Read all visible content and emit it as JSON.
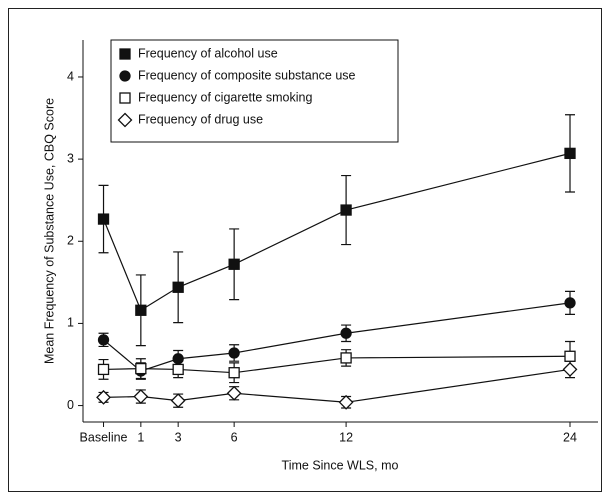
{
  "chart_data": {
    "type": "line",
    "xlabel": "Time Since WLS, mo",
    "ylabel": "Mean Frequency of Substance Use, CBQ Score",
    "x": [
      -1,
      1,
      3,
      6,
      12,
      24
    ],
    "xlim": [
      -2.1,
      25.5
    ],
    "xticks": [
      {
        "value": -1,
        "label": "Baseline"
      },
      1,
      3,
      6,
      12,
      24
    ],
    "ylim": [
      -0.2,
      4.45
    ],
    "yticks": [
      0,
      1,
      2,
      3,
      4
    ],
    "legend": "top-left",
    "series": [
      {
        "name": "Frequency of alcohol use",
        "color": "#111111",
        "marker": "square-filled",
        "values": [
          2.27,
          1.16,
          1.44,
          1.72,
          2.38,
          3.07
        ],
        "errors": [
          0.41,
          0.43,
          0.43,
          0.43,
          0.42,
          0.47
        ]
      },
      {
        "name": "Frequency of composite substance use",
        "color": "#111111",
        "marker": "circle-filled",
        "values": [
          0.8,
          0.42,
          0.57,
          0.64,
          0.88,
          1.25
        ],
        "errors": [
          0.08,
          0.1,
          0.1,
          0.1,
          0.1,
          0.14
        ]
      },
      {
        "name": "Frequency of cigarette smoking",
        "color": "#111111",
        "marker": "square-open",
        "values": [
          0.44,
          0.45,
          0.44,
          0.4,
          0.58,
          0.6
        ],
        "errors": [
          0.12,
          0.12,
          0.1,
          0.12,
          0.1,
          0.18
        ]
      },
      {
        "name": "Frequency of drug use",
        "color": "#111111",
        "marker": "diamond-open",
        "values": [
          0.1,
          0.11,
          0.06,
          0.15,
          0.04,
          0.44
        ],
        "errors": [
          0.06,
          0.08,
          0.08,
          0.08,
          0.07,
          0.1
        ]
      }
    ]
  }
}
